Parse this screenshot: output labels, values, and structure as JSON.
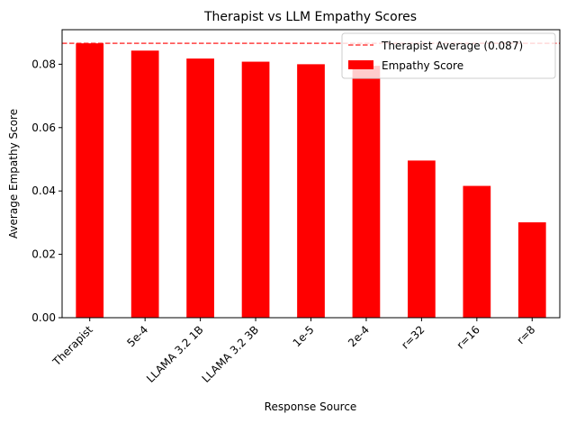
{
  "chart_data": {
    "type": "bar",
    "title": "Therapist vs LLM Empathy Scores",
    "xlabel": "Response Source",
    "ylabel": "Average Empathy Score",
    "categories": [
      "Therapist",
      "5e-4",
      "LLAMA 3.2 1B",
      "LLAMA 3.2 3B",
      "1e-5",
      "2e-4",
      "r=32",
      "r=16",
      "r=8"
    ],
    "series": [
      {
        "name": "Empathy Score",
        "values": [
          0.0866,
          0.0843,
          0.0818,
          0.0808,
          0.08,
          0.0795,
          0.0496,
          0.0416,
          0.0301
        ],
        "color": "#ff0000"
      }
    ],
    "reference_line": {
      "label": "Therapist Average (0.087)",
      "value": 0.0866,
      "color": "#ff0000",
      "style": "dashed"
    },
    "ylim": [
      0,
      0.0909
    ],
    "yticks": [
      "0.00",
      "0.02",
      "0.04",
      "0.06",
      "0.08"
    ],
    "ytick_values": [
      0,
      0.02,
      0.04,
      0.06,
      0.08
    ],
    "grid": false,
    "legend_position": "top-right"
  }
}
